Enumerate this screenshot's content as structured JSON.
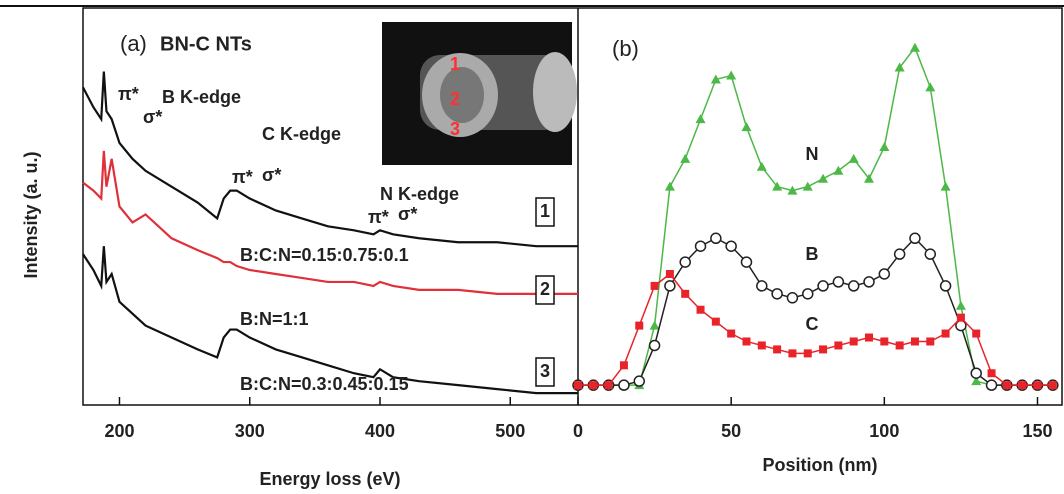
{
  "chart_data": [
    {
      "type": "line",
      "panel_label": "(a)",
      "title": "BN-C NTs",
      "xlabel": "Energy loss (eV)",
      "ylabel": "Intensity (a. u.)",
      "xlim": [
        172,
        552
      ],
      "ylim": [
        0,
        100
      ],
      "xticks": [
        200,
        300,
        400,
        500
      ],
      "x": [
        172,
        180,
        186,
        188,
        190,
        194,
        200,
        210,
        220,
        240,
        260,
        275,
        280,
        285,
        290,
        300,
        320,
        340,
        360,
        380,
        395,
        400,
        410,
        430,
        460,
        490,
        520,
        552
      ],
      "series": [
        {
          "name": "1",
          "color": "#111111",
          "values": [
            80,
            75,
            72,
            84,
            74,
            72,
            66,
            62,
            59,
            55,
            51,
            47,
            52,
            54,
            54,
            52,
            49,
            47,
            45,
            44,
            43,
            44,
            43,
            42,
            41,
            41,
            40,
            40
          ]
        },
        {
          "name": "2",
          "color": "#e0303a",
          "values": [
            56,
            54,
            52,
            64,
            55,
            62,
            50,
            46,
            48,
            42,
            39,
            37,
            36,
            36,
            35,
            34,
            33,
            32,
            31,
            31,
            30,
            31,
            30,
            29,
            29,
            28,
            28,
            28
          ]
        },
        {
          "name": "3",
          "color": "#111111",
          "values": [
            38,
            34,
            30,
            40,
            31,
            33,
            26,
            23,
            20,
            17,
            14,
            12,
            17,
            19,
            19,
            17,
            14,
            12,
            10,
            8,
            7,
            9,
            7,
            6,
            5,
            4,
            3,
            3
          ]
        }
      ],
      "annotations": [
        "π*",
        "B K-edge",
        "σ*",
        "C K-edge",
        "π*",
        "σ*",
        "N K-edge",
        "π*",
        "σ*",
        "B:C:N=0.15:0.75:0.1",
        "B:N=1:1",
        "B:C:N=0.3:0.45:0.15"
      ],
      "inset_labels": [
        "1",
        "2",
        "3"
      ]
    },
    {
      "type": "line",
      "panel_label": "(b)",
      "xlabel": "Position (nm)",
      "xlim": [
        0,
        158
      ],
      "ylim": [
        0,
        100
      ],
      "xticks": [
        0,
        50,
        100,
        150
      ],
      "x": [
        0,
        5,
        10,
        15,
        20,
        25,
        30,
        35,
        40,
        45,
        50,
        55,
        60,
        65,
        70,
        75,
        80,
        85,
        90,
        95,
        100,
        105,
        110,
        115,
        120,
        125,
        130,
        135,
        140,
        145,
        150,
        155
      ],
      "series": [
        {
          "name": "N",
          "color": "#4cb847",
          "marker": "triangle",
          "values": [
            5,
            5,
            5,
            5,
            5,
            20,
            55,
            62,
            72,
            82,
            83,
            70,
            60,
            55,
            54,
            55,
            57,
            59,
            62,
            57,
            65,
            85,
            90,
            80,
            55,
            25,
            6,
            5,
            5,
            5,
            5,
            5
          ]
        },
        {
          "name": "B",
          "color": "#222222",
          "marker": "circle-open",
          "values": [
            5,
            5,
            5,
            5,
            6,
            15,
            30,
            36,
            40,
            42,
            40,
            36,
            30,
            28,
            27,
            28,
            30,
            31,
            30,
            31,
            33,
            38,
            42,
            38,
            30,
            20,
            8,
            5,
            5,
            5,
            5,
            5
          ]
        },
        {
          "name": "C",
          "color": "#e8232a",
          "marker": "square",
          "values": [
            5,
            5,
            5,
            10,
            20,
            30,
            33,
            28,
            24,
            21,
            18,
            16,
            15,
            14,
            13,
            13,
            14,
            15,
            16,
            17,
            16,
            15,
            16,
            16,
            18,
            22,
            18,
            8,
            5,
            5,
            5,
            5
          ]
        }
      ]
    }
  ]
}
